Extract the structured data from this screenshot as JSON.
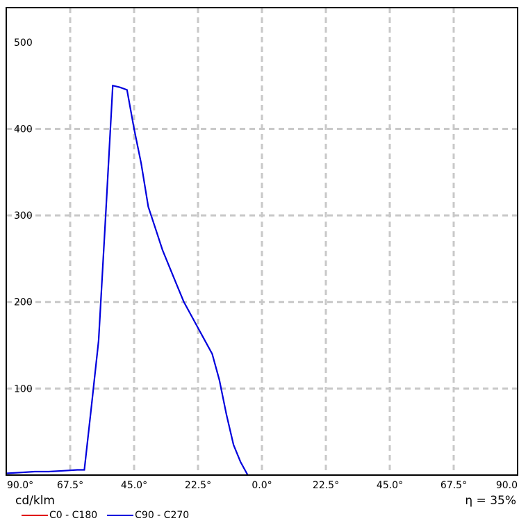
{
  "chart_data": {
    "type": "line",
    "x_tick_labels": [
      "90.0°",
      "67.5°",
      "45.0°",
      "22.5°",
      "0.0°",
      "22.5°",
      "45.0°",
      "67.5°",
      "90.0"
    ],
    "y_tick_labels": [
      "100",
      "200",
      "300",
      "400",
      "500"
    ],
    "ylim": [
      0,
      500
    ],
    "xlim": [
      -90,
      90
    ],
    "grid": true,
    "unit_label": "cd/klm",
    "efficiency_label": "η = 35%",
    "legend_position": "bottom-left",
    "series": [
      {
        "name": "C0 - C180",
        "color": "#e00000",
        "x": [
          -90,
          90
        ],
        "y": [
          0,
          0
        ]
      },
      {
        "name": "C90 - C270",
        "color": "#0000dd",
        "x": [
          -90,
          -85,
          -80,
          -75,
          -70,
          -65,
          -62.5,
          -60,
          -57.5,
          -55,
          -52.5,
          -50,
          -47.5,
          -45,
          -42.5,
          -40,
          -37.5,
          -35,
          -32.5,
          -30,
          -27.5,
          -25,
          -22.5,
          -20,
          -17.5,
          -15,
          -12.5,
          -10,
          -7.5,
          -5
        ],
        "y": [
          2,
          3,
          4,
          4,
          5,
          6,
          6,
          80,
          155,
          300,
          450,
          448,
          445,
          400,
          360,
          310,
          285,
          260,
          240,
          220,
          200,
          185,
          170,
          155,
          140,
          110,
          70,
          35,
          15,
          0
        ]
      }
    ]
  }
}
